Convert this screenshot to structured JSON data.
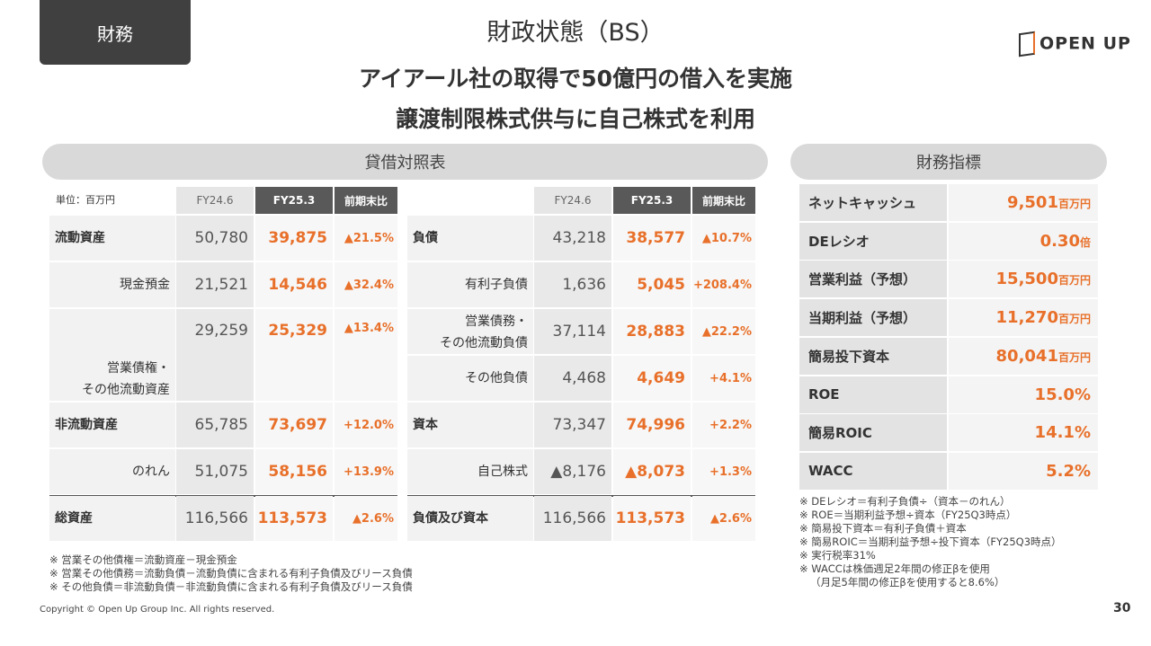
{
  "header": {
    "tab": "財務",
    "title": "財政状態（BS）",
    "logo": "OPEN UP",
    "headline": [
      "アイアール社の取得で50億円の借入を実施",
      "譲渡制限株式供与に自己株式を利用"
    ]
  },
  "bs": {
    "title": "貸借対照表",
    "unit": "単位：百万円",
    "columns": [
      "FY24.6",
      "FY25.3",
      "前期末比"
    ],
    "assets": [
      {
        "label": "流動資産",
        "prev": "50,780",
        "curr": "39,875",
        "change": "▲21.5%"
      },
      {
        "label": "現金預金",
        "prev": "21,521",
        "curr": "14,546",
        "change": "▲32.4%"
      },
      {
        "label": [
          "営業債権・",
          "その他流動資産"
        ],
        "prev": "29,259",
        "curr": "25,329",
        "change": "▲13.4%"
      },
      {
        "label": "非流動資産",
        "prev": "65,785",
        "curr": "73,697",
        "change": "+12.0%"
      },
      {
        "label": "のれん",
        "prev": "51,075",
        "curr": "58,156",
        "change": "+13.9%"
      },
      {
        "label": "総資産",
        "prev": "116,566",
        "curr": "113,573",
        "change": "▲2.6%"
      }
    ],
    "liabilities": [
      {
        "label": "負債",
        "prev": "43,218",
        "curr": "38,577",
        "change": "▲10.7%"
      },
      {
        "label": "有利子負債",
        "prev": "1,636",
        "curr": "5,045",
        "change": "+208.4%"
      },
      {
        "label": [
          "営業債務・",
          "その他流動負債"
        ],
        "prev": "37,114",
        "curr": "28,883",
        "change": "▲22.2%"
      },
      {
        "label": "その他負債",
        "prev": "4,468",
        "curr": "4,649",
        "change": "+4.1%"
      },
      {
        "label": "資本",
        "prev": "73,347",
        "curr": "74,996",
        "change": "+2.2%"
      },
      {
        "label": "自己株式",
        "prev": "▲8,176",
        "curr": "▲8,073",
        "change": "+1.3%"
      },
      {
        "label": "負債及び資本",
        "prev": "116,566",
        "curr": "113,573",
        "change": "▲2.6%"
      }
    ],
    "notes": [
      "※ 営業その他債権＝流動資産－現金預金",
      "※ 営業その他債務＝流動負債－流動負債に含まれる有利子負債及びリース負債",
      "※ その他負債＝非流動負債－非流動負債に含まれる有利子負債及びリース負債"
    ]
  },
  "indicators": {
    "title": "財務指標",
    "rows": [
      {
        "label": "ネットキャッシュ",
        "value": "9,501",
        "unit": "百万円"
      },
      {
        "label": "DEレシオ",
        "value": "0.30",
        "unit": "倍"
      },
      {
        "label": "営業利益（予想）",
        "value": "15,500",
        "unit": "百万円"
      },
      {
        "label": "当期利益（予想）",
        "value": "11,270",
        "unit": "百万円"
      },
      {
        "label": "簡易投下資本",
        "value": "80,041",
        "unit": "百万円"
      },
      {
        "label": "ROE",
        "value": "15.0%"
      },
      {
        "label": "簡易ROIC",
        "value": "14.1%"
      },
      {
        "label": "WACC",
        "value": "5.2%"
      }
    ],
    "notes": [
      "※ DEレシオ＝有利子負債÷（資本－のれん）",
      "※ ROE＝当期利益予想÷資本（FY25Q3時点）",
      "※ 簡易投下資本＝有利子負債＋資本",
      "※ 簡易ROIC＝当期利益予想÷投下資本（FY25Q3時点）",
      "※ 実行税率31%",
      "※ WACCは株価週足2年間の修正βを使用",
      "（月足5年間の修正βを使用すると8.6%）"
    ]
  },
  "footer": {
    "copyright": "Copyright © Open Up Group Inc. All rights reserved.",
    "page": "30"
  }
}
